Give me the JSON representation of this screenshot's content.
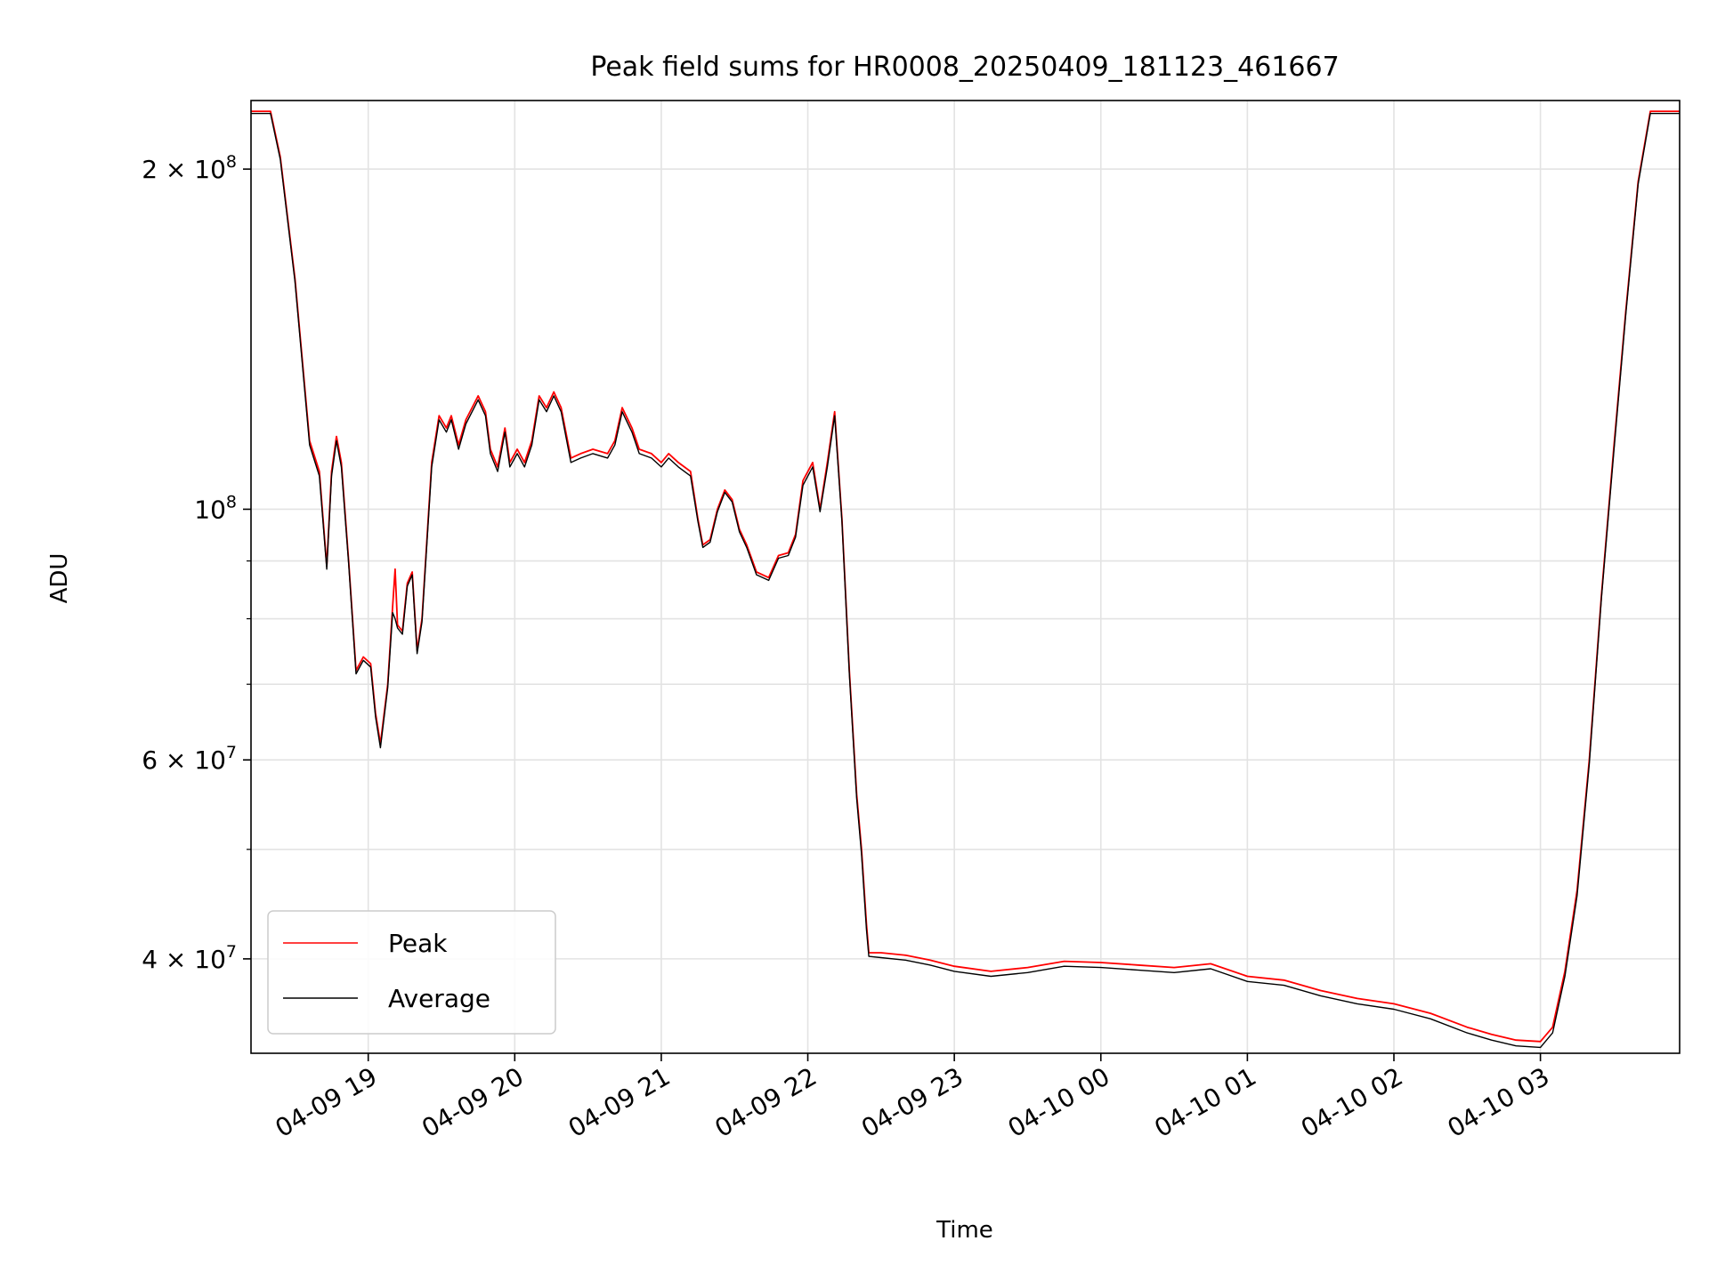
{
  "chart_data": {
    "type": "line",
    "title": "Peak field sums for HR0008_20250409_181123_461667",
    "xlabel": "Time",
    "ylabel": "ADU",
    "yscale": "log",
    "xlim": [
      "2025-04-09 18:12",
      "2025-04-10 03:57"
    ],
    "ylim": [
      33000000,
      230000000
    ],
    "grid": true,
    "legend": "lower-left",
    "x_ticks": [
      {
        "t": "2025-04-09 19:00",
        "label": "04-09 19"
      },
      {
        "t": "2025-04-09 20:00",
        "label": "04-09 20"
      },
      {
        "t": "2025-04-09 21:00",
        "label": "04-09 21"
      },
      {
        "t": "2025-04-09 22:00",
        "label": "04-09 22"
      },
      {
        "t": "2025-04-09 23:00",
        "label": "04-09 23"
      },
      {
        "t": "2025-04-10 00:00",
        "label": "04-10 00"
      },
      {
        "t": "2025-04-10 01:00",
        "label": "04-10 01"
      },
      {
        "t": "2025-04-10 02:00",
        "label": "04-10 02"
      },
      {
        "t": "2025-04-10 03:00",
        "label": "04-10 03"
      }
    ],
    "y_major_ticks": [
      {
        "v": 40000000,
        "mant": "4",
        "exp": "7"
      },
      {
        "v": 60000000,
        "mant": "6",
        "exp": "7"
      },
      {
        "v": 100000000,
        "mant": "",
        "exp": "8"
      },
      {
        "v": 200000000,
        "mant": "2",
        "exp": "8"
      }
    ],
    "y_minor_ticks": [
      50000000,
      70000000,
      80000000,
      90000000
    ],
    "series": [
      {
        "name": "Peak",
        "color": "#ff0000",
        "points": [
          [
            "2025-04-09 18:12",
            225000000
          ],
          [
            "2025-04-09 18:20",
            225000000
          ],
          [
            "2025-04-09 18:24",
            205000000
          ],
          [
            "2025-04-09 18:30",
            160000000
          ],
          [
            "2025-04-09 18:36",
            115000000
          ],
          [
            "2025-04-09 18:40",
            108000000
          ],
          [
            "2025-04-09 18:43",
            89000000
          ],
          [
            "2025-04-09 18:45",
            108000000
          ],
          [
            "2025-04-09 18:47",
            116000000
          ],
          [
            "2025-04-09 18:49",
            110000000
          ],
          [
            "2025-04-09 18:52",
            90000000
          ],
          [
            "2025-04-09 18:55",
            72000000
          ],
          [
            "2025-04-09 18:58",
            74000000
          ],
          [
            "2025-04-09 19:01",
            73000000
          ],
          [
            "2025-04-09 19:03",
            66000000
          ],
          [
            "2025-04-09 19:05",
            62000000
          ],
          [
            "2025-04-09 19:08",
            70000000
          ],
          [
            "2025-04-09 19:10",
            82000000
          ],
          [
            "2025-04-09 19:11",
            88500000
          ],
          [
            "2025-04-09 19:12",
            79000000
          ],
          [
            "2025-04-09 19:14",
            78000000
          ],
          [
            "2025-04-09 19:16",
            86000000
          ],
          [
            "2025-04-09 19:18",
            88000000
          ],
          [
            "2025-04-09 19:20",
            75000000
          ],
          [
            "2025-04-09 19:22",
            80000000
          ],
          [
            "2025-04-09 19:26",
            110000000
          ],
          [
            "2025-04-09 19:29",
            121000000
          ],
          [
            "2025-04-09 19:32",
            118000000
          ],
          [
            "2025-04-09 19:34",
            121000000
          ],
          [
            "2025-04-09 19:37",
            114000000
          ],
          [
            "2025-04-09 19:40",
            120000000
          ],
          [
            "2025-04-09 19:45",
            126000000
          ],
          [
            "2025-04-09 19:48",
            122000000
          ],
          [
            "2025-04-09 19:50",
            113000000
          ],
          [
            "2025-04-09 19:53",
            109000000
          ],
          [
            "2025-04-09 19:56",
            118000000
          ],
          [
            "2025-04-09 19:58",
            110000000
          ],
          [
            "2025-04-09 20:01",
            113000000
          ],
          [
            "2025-04-09 20:04",
            110000000
          ],
          [
            "2025-04-09 20:07",
            115000000
          ],
          [
            "2025-04-09 20:10",
            126000000
          ],
          [
            "2025-04-09 20:13",
            123000000
          ],
          [
            "2025-04-09 20:16",
            127000000
          ],
          [
            "2025-04-09 20:19",
            123000000
          ],
          [
            "2025-04-09 20:23",
            111000000
          ],
          [
            "2025-04-09 20:27",
            112000000
          ],
          [
            "2025-04-09 20:32",
            113000000
          ],
          [
            "2025-04-09 20:38",
            112000000
          ],
          [
            "2025-04-09 20:41",
            115000000
          ],
          [
            "2025-04-09 20:44",
            123000000
          ],
          [
            "2025-04-09 20:48",
            118000000
          ],
          [
            "2025-04-09 20:51",
            113000000
          ],
          [
            "2025-04-09 20:56",
            112000000
          ],
          [
            "2025-04-09 21:00",
            110000000
          ],
          [
            "2025-04-09 21:03",
            112000000
          ],
          [
            "2025-04-09 21:07",
            110000000
          ],
          [
            "2025-04-09 21:12",
            108000000
          ],
          [
            "2025-04-09 21:15",
            98000000
          ],
          [
            "2025-04-09 21:17",
            93000000
          ],
          [
            "2025-04-09 21:20",
            94000000
          ],
          [
            "2025-04-09 21:23",
            100000000
          ],
          [
            "2025-04-09 21:26",
            104000000
          ],
          [
            "2025-04-09 21:29",
            102000000
          ],
          [
            "2025-04-09 21:32",
            96000000
          ],
          [
            "2025-04-09 21:35",
            93000000
          ],
          [
            "2025-04-09 21:39",
            88000000
          ],
          [
            "2025-04-09 21:44",
            87000000
          ],
          [
            "2025-04-09 21:48",
            91000000
          ],
          [
            "2025-04-09 21:52",
            91500000
          ],
          [
            "2025-04-09 21:55",
            95000000
          ],
          [
            "2025-04-09 21:58",
            106000000
          ],
          [
            "2025-04-09 22:02",
            110000000
          ],
          [
            "2025-04-09 22:05",
            100000000
          ],
          [
            "2025-04-09 22:08",
            110000000
          ],
          [
            "2025-04-09 22:11",
            122000000
          ],
          [
            "2025-04-09 22:14",
            98000000
          ],
          [
            "2025-04-09 22:17",
            72000000
          ],
          [
            "2025-04-09 22:20",
            56000000
          ],
          [
            "2025-04-09 22:22",
            50000000
          ],
          [
            "2025-04-09 22:24",
            43000000
          ],
          [
            "2025-04-09 22:25",
            40500000
          ],
          [
            "2025-04-09 22:30",
            40500000
          ],
          [
            "2025-04-09 22:40",
            40300000
          ],
          [
            "2025-04-09 22:50",
            39900000
          ],
          [
            "2025-04-09 23:00",
            39400000
          ],
          [
            "2025-04-09 23:15",
            39000000
          ],
          [
            "2025-04-09 23:30",
            39300000
          ],
          [
            "2025-04-09 23:45",
            39800000
          ],
          [
            "2025-04-10 00:00",
            39700000
          ],
          [
            "2025-04-10 00:15",
            39500000
          ],
          [
            "2025-04-10 00:30",
            39300000
          ],
          [
            "2025-04-10 00:45",
            39600000
          ],
          [
            "2025-04-10 01:00",
            38600000
          ],
          [
            "2025-04-10 01:15",
            38300000
          ],
          [
            "2025-04-10 01:30",
            37500000
          ],
          [
            "2025-04-10 01:45",
            36900000
          ],
          [
            "2025-04-10 02:00",
            36500000
          ],
          [
            "2025-04-10 02:15",
            35800000
          ],
          [
            "2025-04-10 02:30",
            34800000
          ],
          [
            "2025-04-10 02:40",
            34300000
          ],
          [
            "2025-04-10 02:50",
            33900000
          ],
          [
            "2025-04-10 03:00",
            33800000
          ],
          [
            "2025-04-10 03:05",
            34800000
          ],
          [
            "2025-04-10 03:10",
            39000000
          ],
          [
            "2025-04-10 03:15",
            46000000
          ],
          [
            "2025-04-10 03:20",
            60000000
          ],
          [
            "2025-04-10 03:25",
            84000000
          ],
          [
            "2025-04-10 03:30",
            113000000
          ],
          [
            "2025-04-10 03:35",
            150000000
          ],
          [
            "2025-04-10 03:40",
            195000000
          ],
          [
            "2025-04-10 03:45",
            225000000
          ],
          [
            "2025-04-10 03:57",
            225000000
          ]
        ]
      },
      {
        "name": "Average",
        "color": "#000000",
        "points": [
          [
            "2025-04-09 18:12",
            224000000
          ],
          [
            "2025-04-09 18:20",
            224000000
          ],
          [
            "2025-04-09 18:24",
            204000000
          ],
          [
            "2025-04-09 18:30",
            159000000
          ],
          [
            "2025-04-09 18:36",
            114000000
          ],
          [
            "2025-04-09 18:40",
            107000000
          ],
          [
            "2025-04-09 18:43",
            88500000
          ],
          [
            "2025-04-09 18:45",
            107000000
          ],
          [
            "2025-04-09 18:47",
            115000000
          ],
          [
            "2025-04-09 18:49",
            109000000
          ],
          [
            "2025-04-09 18:52",
            89500000
          ],
          [
            "2025-04-09 18:55",
            71500000
          ],
          [
            "2025-04-09 18:58",
            73500000
          ],
          [
            "2025-04-09 19:01",
            72500000
          ],
          [
            "2025-04-09 19:03",
            65500000
          ],
          [
            "2025-04-09 19:05",
            61500000
          ],
          [
            "2025-04-09 19:08",
            69500000
          ],
          [
            "2025-04-09 19:10",
            81000000
          ],
          [
            "2025-04-09 19:11",
            80000000
          ],
          [
            "2025-04-09 19:12",
            78500000
          ],
          [
            "2025-04-09 19:14",
            77500000
          ],
          [
            "2025-04-09 19:16",
            85500000
          ],
          [
            "2025-04-09 19:18",
            87500000
          ],
          [
            "2025-04-09 19:20",
            74500000
          ],
          [
            "2025-04-09 19:22",
            79500000
          ],
          [
            "2025-04-09 19:26",
            109000000
          ],
          [
            "2025-04-09 19:29",
            120000000
          ],
          [
            "2025-04-09 19:32",
            117000000
          ],
          [
            "2025-04-09 19:34",
            120000000
          ],
          [
            "2025-04-09 19:37",
            113000000
          ],
          [
            "2025-04-09 19:40",
            119000000
          ],
          [
            "2025-04-09 19:45",
            125000000
          ],
          [
            "2025-04-09 19:48",
            121000000
          ],
          [
            "2025-04-09 19:50",
            112000000
          ],
          [
            "2025-04-09 19:53",
            108000000
          ],
          [
            "2025-04-09 19:56",
            117000000
          ],
          [
            "2025-04-09 19:58",
            109000000
          ],
          [
            "2025-04-09 20:01",
            112000000
          ],
          [
            "2025-04-09 20:04",
            109000000
          ],
          [
            "2025-04-09 20:07",
            114000000
          ],
          [
            "2025-04-09 20:10",
            125000000
          ],
          [
            "2025-04-09 20:13",
            122000000
          ],
          [
            "2025-04-09 20:16",
            126000000
          ],
          [
            "2025-04-09 20:19",
            122000000
          ],
          [
            "2025-04-09 20:23",
            110000000
          ],
          [
            "2025-04-09 20:27",
            111000000
          ],
          [
            "2025-04-09 20:32",
            112000000
          ],
          [
            "2025-04-09 20:38",
            111000000
          ],
          [
            "2025-04-09 20:41",
            114000000
          ],
          [
            "2025-04-09 20:44",
            122000000
          ],
          [
            "2025-04-09 20:48",
            117000000
          ],
          [
            "2025-04-09 20:51",
            112000000
          ],
          [
            "2025-04-09 20:56",
            111000000
          ],
          [
            "2025-04-09 21:00",
            109000000
          ],
          [
            "2025-04-09 21:03",
            111000000
          ],
          [
            "2025-04-09 21:07",
            109000000
          ],
          [
            "2025-04-09 21:12",
            107000000
          ],
          [
            "2025-04-09 21:15",
            97500000
          ],
          [
            "2025-04-09 21:17",
            92500000
          ],
          [
            "2025-04-09 21:20",
            93500000
          ],
          [
            "2025-04-09 21:23",
            99500000
          ],
          [
            "2025-04-09 21:26",
            103500000
          ],
          [
            "2025-04-09 21:29",
            101500000
          ],
          [
            "2025-04-09 21:32",
            95500000
          ],
          [
            "2025-04-09 21:35",
            92500000
          ],
          [
            "2025-04-09 21:39",
            87500000
          ],
          [
            "2025-04-09 21:44",
            86500000
          ],
          [
            "2025-04-09 21:48",
            90500000
          ],
          [
            "2025-04-09 21:52",
            91000000
          ],
          [
            "2025-04-09 21:55",
            94500000
          ],
          [
            "2025-04-09 21:58",
            105000000
          ],
          [
            "2025-04-09 22:02",
            109000000
          ],
          [
            "2025-04-09 22:05",
            99500000
          ],
          [
            "2025-04-09 22:08",
            109000000
          ],
          [
            "2025-04-09 22:11",
            121000000
          ],
          [
            "2025-04-09 22:14",
            97500000
          ],
          [
            "2025-04-09 22:17",
            71500000
          ],
          [
            "2025-04-09 22:20",
            55500000
          ],
          [
            "2025-04-09 22:22",
            49500000
          ],
          [
            "2025-04-09 22:24",
            42500000
          ],
          [
            "2025-04-09 22:25",
            40200000
          ],
          [
            "2025-04-09 22:30",
            40100000
          ],
          [
            "2025-04-09 22:40",
            39900000
          ],
          [
            "2025-04-09 22:50",
            39500000
          ],
          [
            "2025-04-09 23:00",
            39000000
          ],
          [
            "2025-04-09 23:15",
            38600000
          ],
          [
            "2025-04-09 23:30",
            38900000
          ],
          [
            "2025-04-09 23:45",
            39400000
          ],
          [
            "2025-04-10 00:00",
            39300000
          ],
          [
            "2025-04-10 00:15",
            39100000
          ],
          [
            "2025-04-10 00:30",
            38900000
          ],
          [
            "2025-04-10 00:45",
            39200000
          ],
          [
            "2025-04-10 01:00",
            38200000
          ],
          [
            "2025-04-10 01:15",
            37900000
          ],
          [
            "2025-04-10 01:30",
            37100000
          ],
          [
            "2025-04-10 01:45",
            36500000
          ],
          [
            "2025-04-10 02:00",
            36100000
          ],
          [
            "2025-04-10 02:15",
            35400000
          ],
          [
            "2025-04-10 02:30",
            34400000
          ],
          [
            "2025-04-10 02:40",
            33900000
          ],
          [
            "2025-04-10 02:50",
            33500000
          ],
          [
            "2025-04-10 03:00",
            33400000
          ],
          [
            "2025-04-10 03:05",
            34400000
          ],
          [
            "2025-04-10 03:10",
            38600000
          ],
          [
            "2025-04-10 03:15",
            45500000
          ],
          [
            "2025-04-10 03:20",
            59500000
          ],
          [
            "2025-04-10 03:25",
            83500000
          ],
          [
            "2025-04-10 03:30",
            112000000
          ],
          [
            "2025-04-10 03:35",
            149000000
          ],
          [
            "2025-04-10 03:40",
            194000000
          ],
          [
            "2025-04-10 03:45",
            224000000
          ],
          [
            "2025-04-10 03:57",
            224000000
          ]
        ]
      }
    ]
  }
}
